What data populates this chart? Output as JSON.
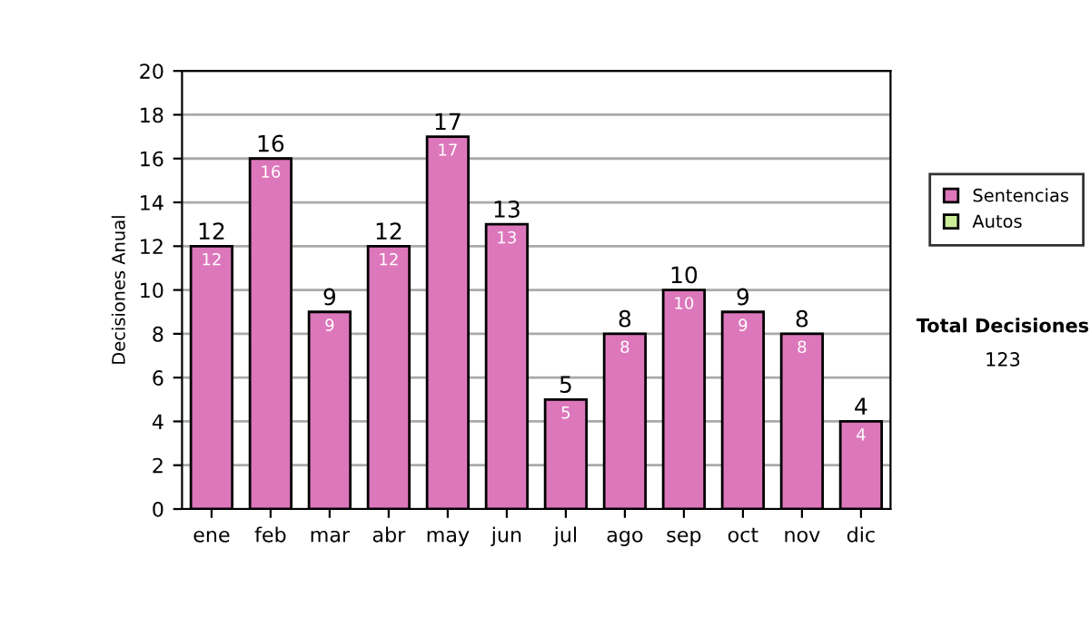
{
  "chart_data": {
    "type": "bar",
    "stacked": true,
    "ylabel": "Decisiones Anual",
    "categories": [
      "ene",
      "feb",
      "mar",
      "abr",
      "may",
      "jun",
      "jul",
      "ago",
      "sep",
      "oct",
      "nov",
      "dic"
    ],
    "series": [
      {
        "name": "Sentencias",
        "color": "#dd77bb",
        "values": [
          12,
          16,
          9,
          12,
          17,
          13,
          5,
          8,
          10,
          9,
          8,
          4
        ],
        "value_labels": [
          "12",
          "16",
          "9",
          "12",
          "17",
          "13",
          "5",
          "8",
          "10",
          "9",
          "8",
          "4"
        ]
      },
      {
        "name": "Autos",
        "color": "#ccee99",
        "values": [
          null,
          null,
          null,
          null,
          null,
          null,
          null,
          null,
          null,
          null,
          null,
          null
        ]
      }
    ],
    "totals": [
      "12",
      "16",
      "9",
      "12",
      "17",
      "13",
      "5",
      "8",
      "10",
      "9",
      "8",
      "4"
    ],
    "ylim": [
      0,
      20
    ],
    "yticks": [
      0,
      2,
      4,
      6,
      8,
      10,
      12,
      14,
      16,
      18,
      20
    ],
    "grid": "y",
    "legend": "right",
    "annotations": [
      "Total Decisiones",
      "123"
    ]
  }
}
